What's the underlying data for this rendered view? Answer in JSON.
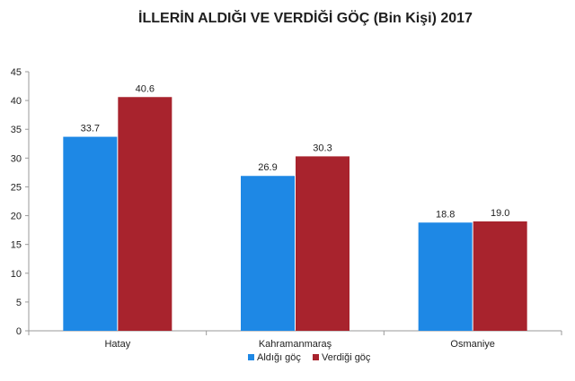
{
  "chart_data": {
    "type": "bar",
    "title": "İLLERİN ALDIĞI VE VERDİĞİ GÖÇ (Bin Kişi) 2017",
    "categories": [
      "Hatay",
      "Kahramanmaraş",
      "Osmaniye"
    ],
    "series": [
      {
        "name": "Aldığı göç",
        "values": [
          33.7,
          26.9,
          18.8
        ],
        "color": "#1e88e5"
      },
      {
        "name": "Verdiği göç",
        "values": [
          40.6,
          30.3,
          19.0
        ],
        "color": "#a8232d"
      }
    ],
    "data_labels": [
      [
        "33.7",
        "26.9",
        "18.8"
      ],
      [
        "40.6",
        "30.3",
        "19.0"
      ]
    ],
    "yticks": [
      "0",
      "5",
      "10",
      "15",
      "20",
      "25",
      "30",
      "35",
      "40",
      "45"
    ],
    "ylim": [
      0,
      45
    ],
    "xlabel": "",
    "ylabel": "",
    "grid": false,
    "legend_position": "bottom"
  }
}
